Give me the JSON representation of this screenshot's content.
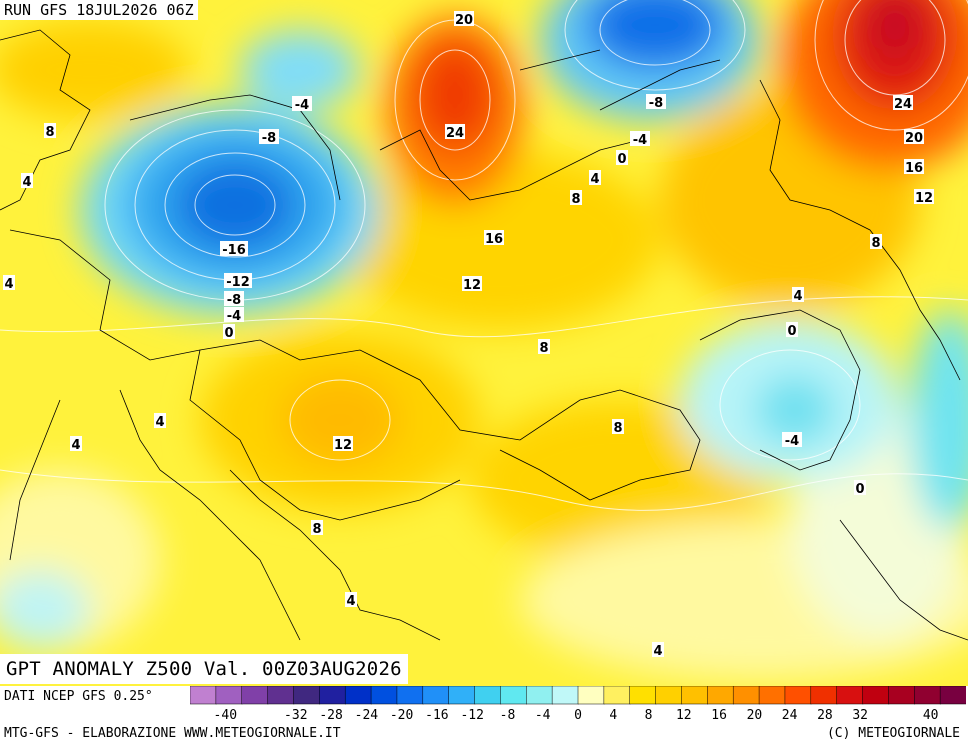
{
  "header": {
    "run_label": "RUN GFS 18JUL2026 06Z"
  },
  "map_title": "GPT ANOMALY Z500 Val. 00Z03AUG2026",
  "footer": {
    "source": "DATI NCEP GFS 0.25°",
    "credit_left": "MTG-GFS - ELABORAZIONE WWW.METEOGIORNALE.IT",
    "credit_right": "(C) METEOGIORNALE"
  },
  "colorbar": {
    "ticks": [
      "-40",
      "-32",
      "-28",
      "-24",
      "-20",
      "-16",
      "-12",
      "-8",
      "-4",
      "0",
      "4",
      "8",
      "12",
      "16",
      "20",
      "24",
      "28",
      "32",
      "40"
    ],
    "tick_values": [
      -40,
      -32,
      -28,
      -24,
      -20,
      -16,
      -12,
      -8,
      -4,
      0,
      4,
      8,
      12,
      16,
      20,
      24,
      28,
      32,
      40
    ],
    "colors": [
      "#c080d0",
      "#a060c0",
      "#8040a8",
      "#603090",
      "#402880",
      "#2020a0",
      "#0030c8",
      "#0050e0",
      "#1070f0",
      "#2090f8",
      "#30b0f8",
      "#40d0f0",
      "#60e8f0",
      "#90f0f0",
      "#c0f8f8",
      "#ffffc0",
      "#fff060",
      "#ffe000",
      "#ffd000",
      "#ffc000",
      "#ffa800",
      "#ff9000",
      "#ff7000",
      "#ff5000",
      "#f03000",
      "#d81010",
      "#c00010",
      "#a80020",
      "#900030",
      "#780040"
    ]
  },
  "contour_labels": [
    {
      "text": "20"
    },
    {
      "text": "24"
    },
    {
      "text": "-4"
    },
    {
      "text": "-8"
    },
    {
      "text": "8"
    },
    {
      "text": "4"
    },
    {
      "text": "-16"
    },
    {
      "text": "-12"
    },
    {
      "text": "-8"
    },
    {
      "text": "-4"
    },
    {
      "text": "0"
    },
    {
      "text": "4"
    },
    {
      "text": "16"
    },
    {
      "text": "12"
    },
    {
      "text": "8"
    },
    {
      "text": "12"
    },
    {
      "text": "4"
    },
    {
      "text": "8"
    },
    {
      "text": "4"
    },
    {
      "text": "-8"
    },
    {
      "text": "-4"
    },
    {
      "text": "0"
    },
    {
      "text": "4"
    },
    {
      "text": "8"
    },
    {
      "text": "24"
    },
    {
      "text": "20"
    },
    {
      "text": "16"
    },
    {
      "text": "12"
    },
    {
      "text": "8"
    },
    {
      "text": "4"
    },
    {
      "text": "0"
    },
    {
      "text": "-4"
    },
    {
      "text": "0"
    },
    {
      "text": "8"
    },
    {
      "text": "4"
    },
    {
      "text": "4"
    },
    {
      "text": "4"
    }
  ]
}
